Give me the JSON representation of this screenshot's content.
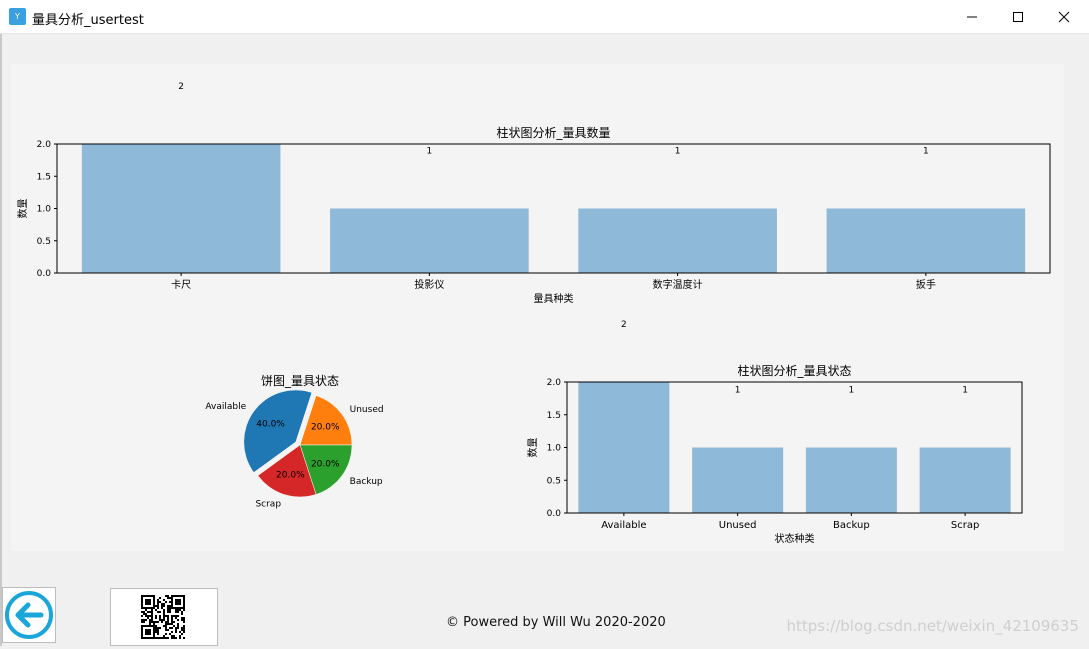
{
  "window": {
    "title": "量具分析_usertest",
    "icon": "app-icon",
    "controls": [
      "minimize-icon",
      "maximize-icon",
      "close-icon"
    ]
  },
  "footer": {
    "powered": "© Powered by Will Wu 2020-2020",
    "watermark": "https://blog.csdn.net/weixin_42109635"
  },
  "colors": {
    "bar": "#8fb9d9",
    "pie": [
      "#1f77b4",
      "#ff7f0e",
      "#2ca02c",
      "#d62728"
    ]
  },
  "chart_data": [
    {
      "type": "bar",
      "title": "柱状图分析_量具数量",
      "xlabel": "量具种类",
      "ylabel": "数量",
      "categories": [
        "卡尺",
        "投影仪",
        "数字温度计",
        "扳手"
      ],
      "values": [
        2,
        1,
        1,
        1
      ],
      "data_labels": [
        "2",
        "1",
        "1",
        "1"
      ],
      "ylim": [
        0,
        2
      ],
      "yticks": [
        "0.0",
        "0.5",
        "1.0",
        "1.5",
        "2.0"
      ],
      "grid": false
    },
    {
      "type": "pie",
      "title": "饼图_量具状态",
      "labels": [
        "Available",
        "Unused",
        "Backup",
        "Scrap"
      ],
      "values": [
        40.0,
        20.0,
        20.0,
        20.0
      ],
      "pct_labels": [
        "40.0%",
        "20.0%",
        "20.0%",
        "20.0%"
      ],
      "explode": "Available"
    },
    {
      "type": "bar",
      "title": "柱状图分析_量具状态",
      "xlabel": "状态种类",
      "ylabel": "数量",
      "categories": [
        "Available",
        "Unused",
        "Backup",
        "Scrap"
      ],
      "values": [
        2,
        1,
        1,
        1
      ],
      "data_labels": [
        "2",
        "1",
        "1",
        "1"
      ],
      "ylim": [
        0,
        2
      ],
      "yticks": [
        "0.0",
        "0.5",
        "1.0",
        "1.5",
        "2.0"
      ],
      "grid": false
    }
  ]
}
